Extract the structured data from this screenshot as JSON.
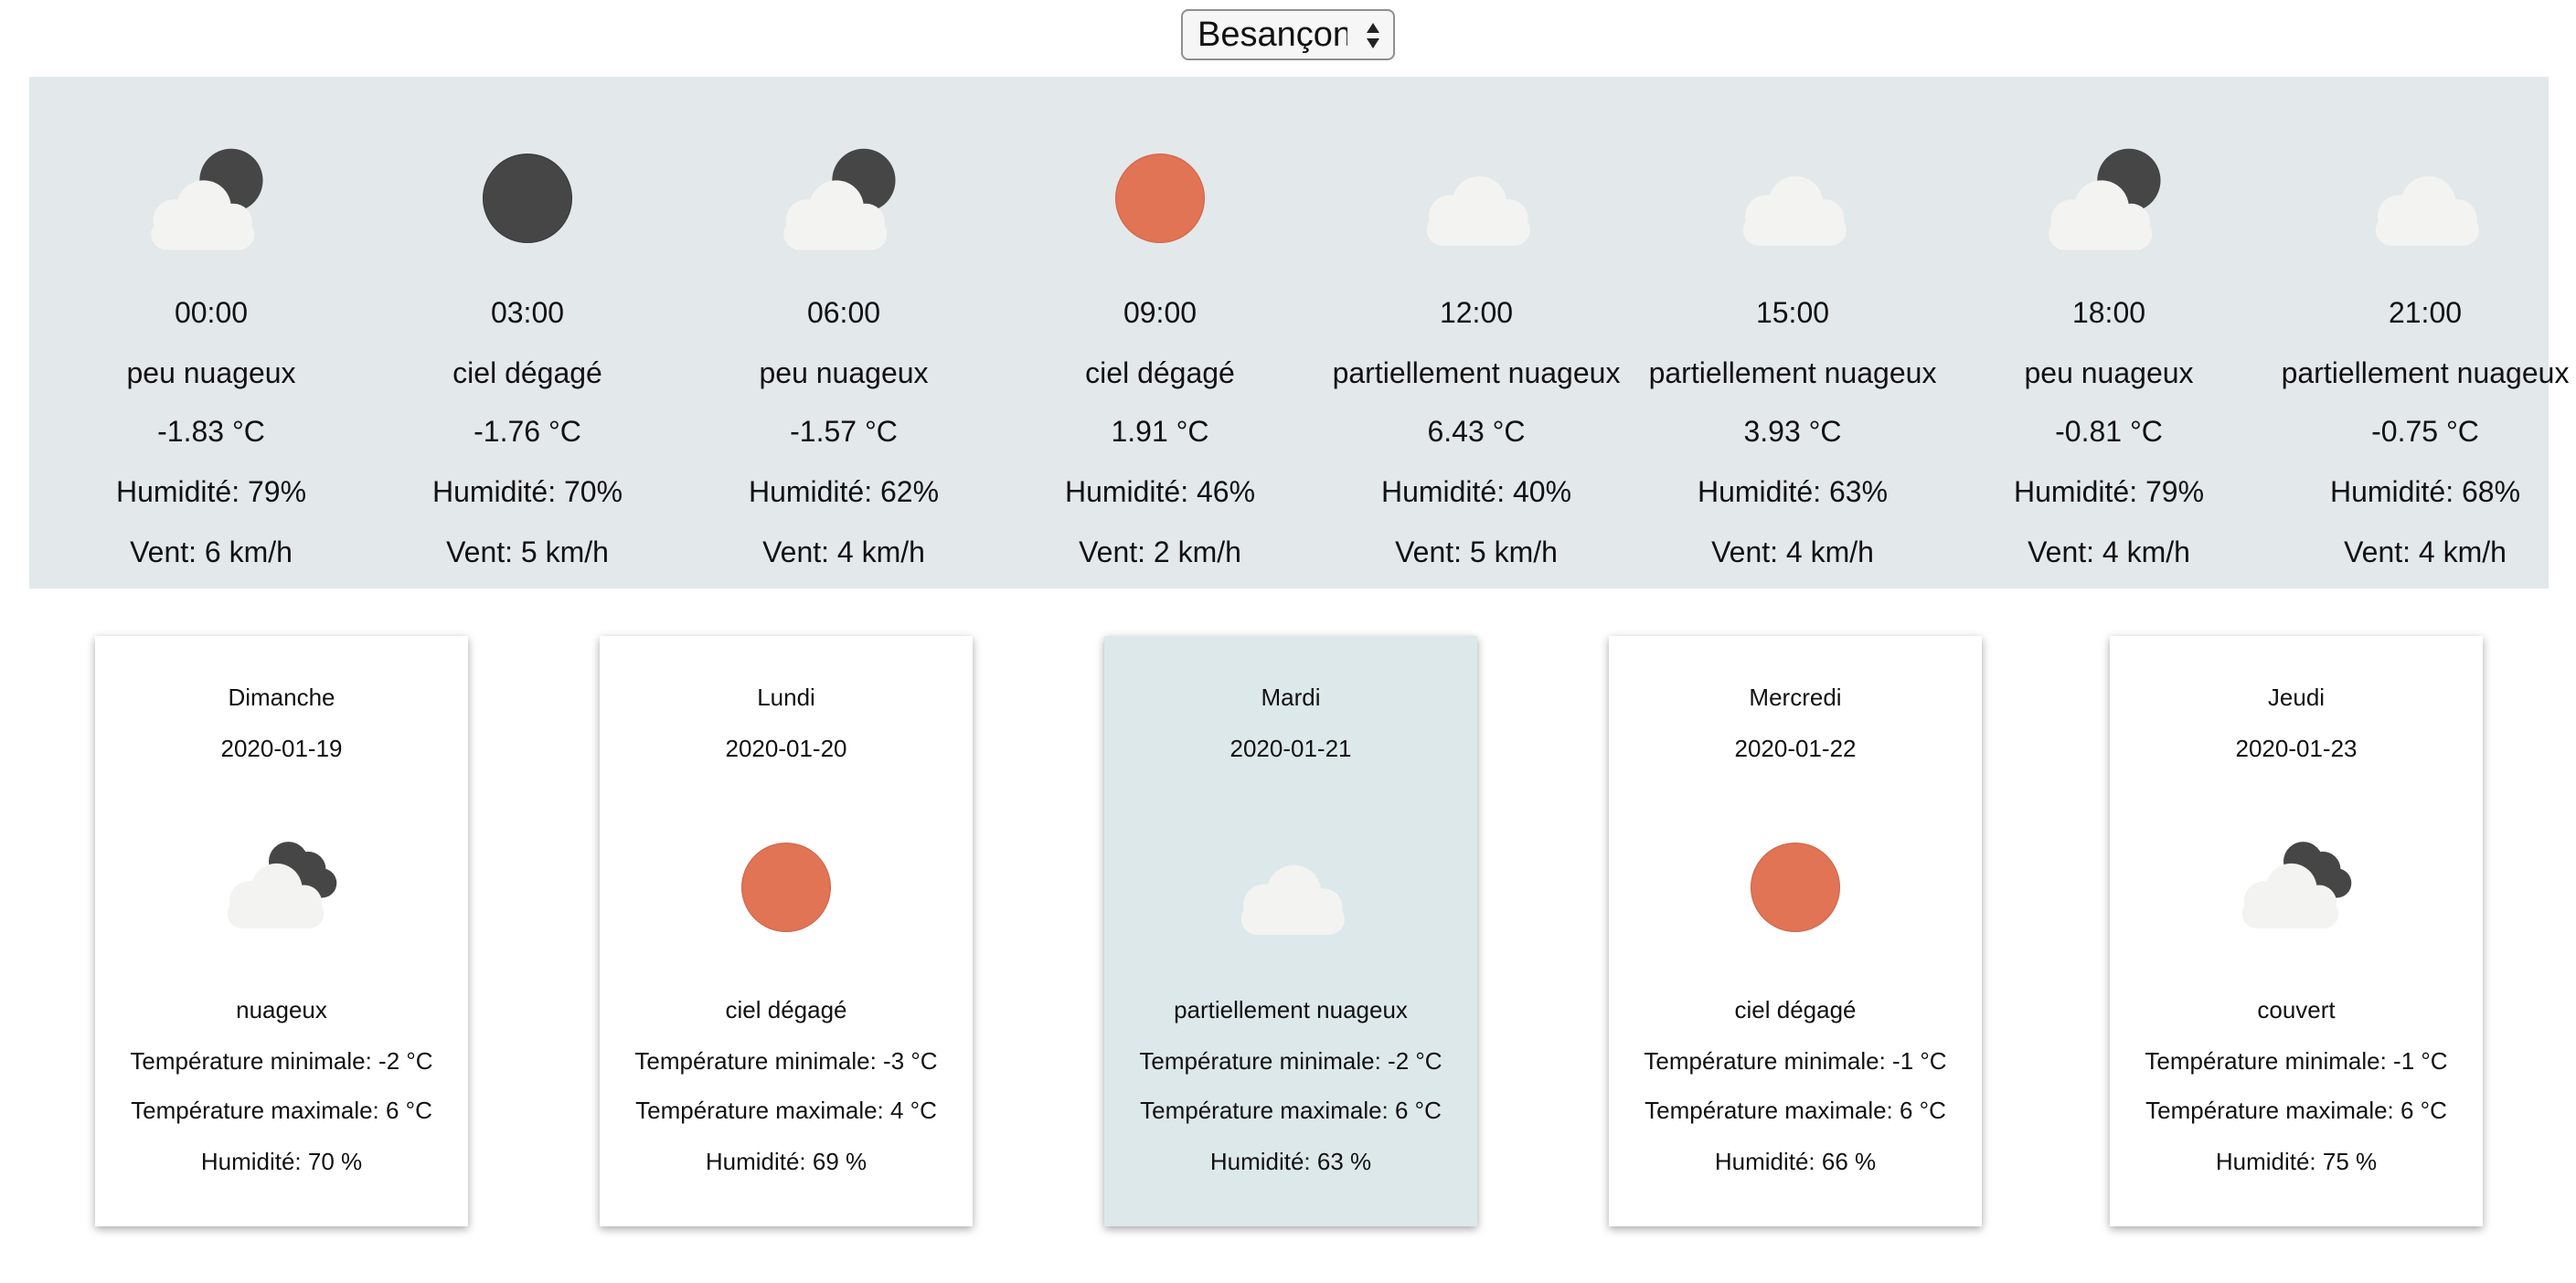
{
  "city_select": {
    "selected": "Besançon"
  },
  "labels": {
    "humidity": "Humidité:",
    "wind": "Vent:",
    "temp_min": "Température minimale:",
    "temp_max": "Température maximale:",
    "day_humidity": "Humidité:"
  },
  "colors": {
    "sun": "#e07454",
    "moon": "#464646",
    "cloud": "#f3f3f1",
    "hourly_bg": "#e3e8ea",
    "selected_day_bg": "#dde8ea"
  },
  "hourly": [
    {
      "icon": "few-clouds-night-icon",
      "time": "00:00",
      "desc": "peu nuageux",
      "temp": "-1.83 °C",
      "humidity": "Humidité: 79%",
      "wind": "Vent: 6 km/h"
    },
    {
      "icon": "clear-night-icon",
      "time": "03:00",
      "desc": "ciel dégagé",
      "temp": "-1.76 °C",
      "humidity": "Humidité: 70%",
      "wind": "Vent: 5 km/h"
    },
    {
      "icon": "few-clouds-night-icon",
      "time": "06:00",
      "desc": "peu nuageux",
      "temp": "-1.57 °C",
      "humidity": "Humidité: 62%",
      "wind": "Vent: 4 km/h"
    },
    {
      "icon": "clear-day-icon",
      "time": "09:00",
      "desc": "ciel dégagé",
      "temp": "1.91 °C",
      "humidity": "Humidité: 46%",
      "wind": "Vent: 2 km/h"
    },
    {
      "icon": "cloud-icon",
      "time": "12:00",
      "desc": "partiellement nuageux",
      "temp": "6.43 °C",
      "humidity": "Humidité: 40%",
      "wind": "Vent: 5 km/h"
    },
    {
      "icon": "cloud-icon",
      "time": "15:00",
      "desc": "partiellement nuageux",
      "temp": "3.93 °C",
      "humidity": "Humidité: 63%",
      "wind": "Vent: 4 km/h"
    },
    {
      "icon": "few-clouds-night-icon",
      "time": "18:00",
      "desc": "peu nuageux",
      "temp": "-0.81 °C",
      "humidity": "Humidité: 79%",
      "wind": "Vent: 4 km/h"
    },
    {
      "icon": "cloud-icon",
      "time": "21:00",
      "desc": "partiellement nuageux",
      "temp": "-0.75 °C",
      "humidity": "Humidité: 68%",
      "wind": "Vent: 4 km/h"
    }
  ],
  "days": [
    {
      "icon": "broken-clouds-icon",
      "name": "Dimanche",
      "date": "2020-01-19",
      "desc": "nuageux",
      "min": "Température minimale: -2 °C",
      "max": "Température maximale: 6 °C",
      "humidity": "Humidité: 70 %",
      "selected": false
    },
    {
      "icon": "clear-day-icon",
      "name": "Lundi",
      "date": "2020-01-20",
      "desc": "ciel dégagé",
      "min": "Température minimale: -3 °C",
      "max": "Température maximale: 4 °C",
      "humidity": "Humidité: 69 %",
      "selected": false
    },
    {
      "icon": "cloud-icon",
      "name": "Mardi",
      "date": "2020-01-21",
      "desc": "partiellement nuageux",
      "min": "Température minimale: -2 °C",
      "max": "Température maximale: 6 °C",
      "humidity": "Humidité: 63 %",
      "selected": true
    },
    {
      "icon": "clear-day-icon",
      "name": "Mercredi",
      "date": "2020-01-22",
      "desc": "ciel dégagé",
      "min": "Température minimale: -1 °C",
      "max": "Température maximale: 6 °C",
      "humidity": "Humidité: 66 %",
      "selected": false
    },
    {
      "icon": "broken-clouds-icon",
      "name": "Jeudi",
      "date": "2020-01-23",
      "desc": "couvert",
      "min": "Température minimale: -1 °C",
      "max": "Température maximale: 6 °C",
      "humidity": "Humidité: 75 %",
      "selected": false
    }
  ]
}
